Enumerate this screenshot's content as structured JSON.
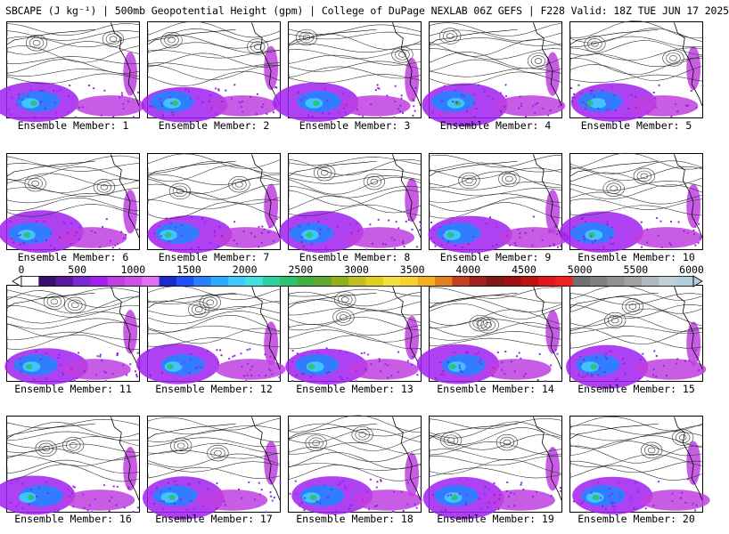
{
  "header": {
    "title": "SBCAPE (J kg⁻¹) | 500mb Geopotential Height (gpm) | College of DuPage NEXLAB 06Z GEFS | F228 Valid: 18Z TUE JUN 17 2025"
  },
  "panels": [
    {
      "label": "Ensemble Member: 1"
    },
    {
      "label": "Ensemble Member: 2"
    },
    {
      "label": "Ensemble Member: 3"
    },
    {
      "label": "Ensemble Member: 4"
    },
    {
      "label": "Ensemble Member: 5"
    },
    {
      "label": "Ensemble Member: 6"
    },
    {
      "label": "Ensemble Member: 7"
    },
    {
      "label": "Ensemble Member: 8"
    },
    {
      "label": "Ensemble Member: 9"
    },
    {
      "label": "Ensemble Member: 10"
    },
    {
      "label": "Ensemble Member: 11"
    },
    {
      "label": "Ensemble Member: 12"
    },
    {
      "label": "Ensemble Member: 13"
    },
    {
      "label": "Ensemble Member: 14"
    },
    {
      "label": "Ensemble Member: 15"
    },
    {
      "label": "Ensemble Member: 16"
    },
    {
      "label": "Ensemble Member: 17"
    },
    {
      "label": "Ensemble Member: 18"
    },
    {
      "label": "Ensemble Member: 19"
    },
    {
      "label": "Ensemble Member: 20"
    }
  ],
  "colorbar": {
    "ticks": [
      "0",
      "500",
      "1000",
      "1500",
      "2000",
      "2500",
      "3000",
      "3500",
      "4000",
      "4500",
      "5000",
      "5500",
      "6000"
    ],
    "colors": [
      "#ffffff",
      "#3b0f6e",
      "#5a1a9e",
      "#7b2ad0",
      "#a020f0",
      "#c040e0",
      "#d050e8",
      "#e070f0",
      "#1a2ad0",
      "#2050ff",
      "#2a80ff",
      "#30a8ff",
      "#40c8ff",
      "#40e0e0",
      "#30d0a0",
      "#30c070",
      "#40b040",
      "#60a830",
      "#90b020",
      "#c0c020",
      "#e0d020",
      "#f0e040",
      "#f8d030",
      "#f0b020",
      "#e08020",
      "#c04020",
      "#a02020",
      "#801818",
      "#a01010",
      "#c01010",
      "#e01818",
      "#f02020",
      "#707070",
      "#808080",
      "#909090",
      "#a0a0a0",
      "#b0b8c0",
      "#c0d0d8",
      "#b0d0e0"
    ]
  }
}
